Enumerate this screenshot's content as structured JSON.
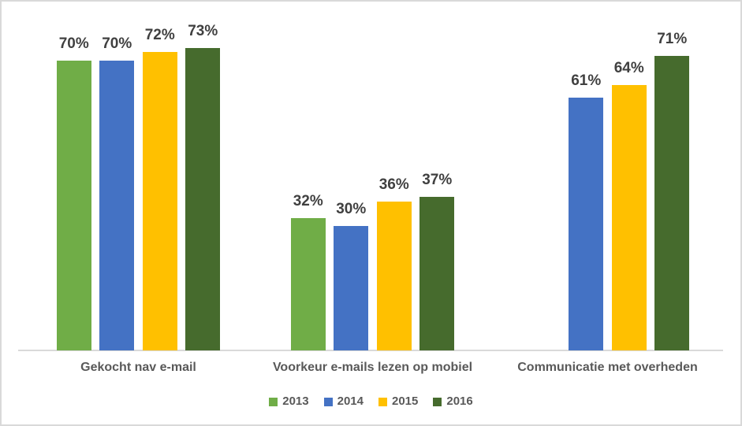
{
  "chart_data": {
    "type": "bar",
    "title": "",
    "xlabel": "",
    "ylabel": "",
    "categories": [
      "Gekocht nav e-mail",
      "Voorkeur e-mails lezen op mobiel",
      "Communicatie met overheden"
    ],
    "series": [
      {
        "name": "2013",
        "color": "#70AD47",
        "values": [
          70,
          32,
          null
        ],
        "labels": [
          "70%",
          "32%",
          null
        ]
      },
      {
        "name": "2014",
        "color": "#4472C4",
        "values": [
          70,
          30,
          61
        ],
        "labels": [
          "70%",
          "30%",
          "61%"
        ]
      },
      {
        "name": "2015",
        "color": "#FFC000",
        "values": [
          72,
          36,
          64
        ],
        "labels": [
          "72%",
          "36%",
          "64%"
        ]
      },
      {
        "name": "2016",
        "color": "#466B2D",
        "values": [
          73,
          37,
          71
        ],
        "labels": [
          "73%",
          "37%",
          "71%"
        ]
      }
    ],
    "ylim": [
      0,
      80
    ],
    "grid": false,
    "legend_position": "bottom",
    "legend_entries": [
      "2013",
      "2014",
      "2015",
      "2016"
    ]
  },
  "styles": {
    "data_label_color": "#404040",
    "category_label_color": "#595959",
    "legend_text_color": "#595959",
    "axis_line_color": "#D9D9D9",
    "frame_border_color": "#D9D9D9",
    "background_color": "#FFFFFF"
  }
}
